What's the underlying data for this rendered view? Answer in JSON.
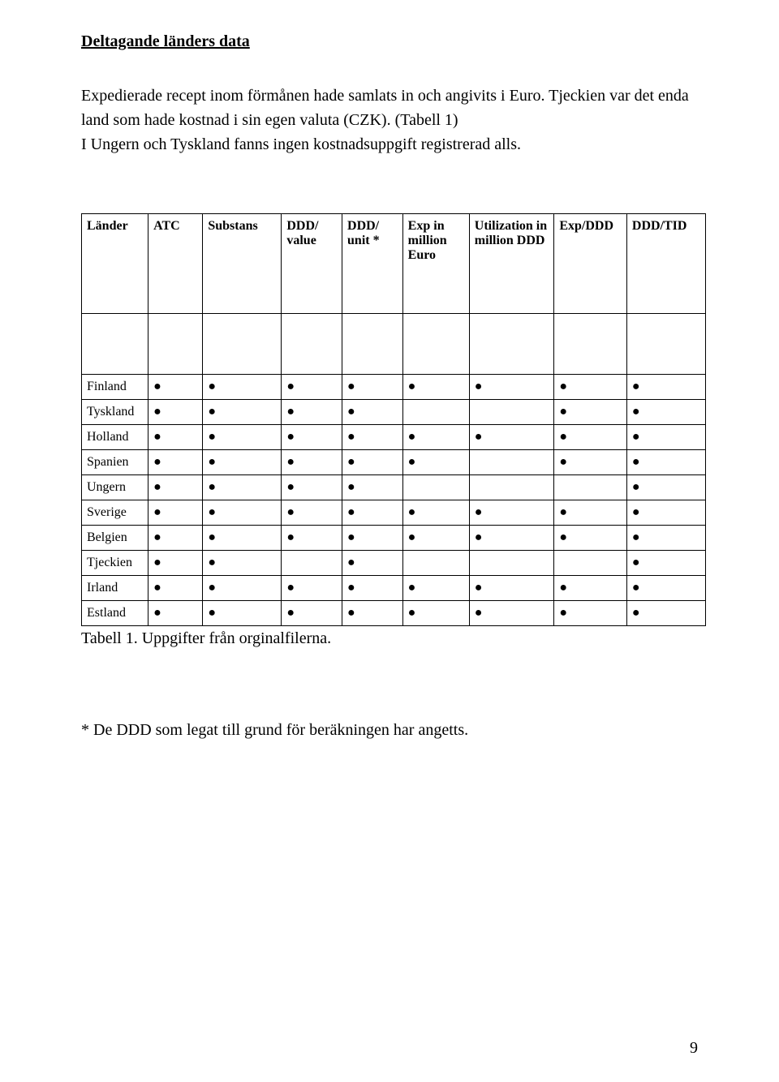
{
  "heading": "Deltagande länders data",
  "intro_paragraph": "Expedierade recept inom förmånen hade samlats in och angivits i Euro. Tjeckien var det enda land som hade kostnad i sin egen valuta (CZK). (Tabell 1)\nI Ungern och Tyskland fanns ingen kostnadsuppgift registrerad alls.",
  "table": {
    "columns": [
      "Länder",
      "ATC",
      "Substans",
      "DDD/ value",
      "DDD/ unit *",
      "Exp in million Euro",
      "Utilization in million DDD",
      "Exp/DDD",
      "DDD/TID"
    ],
    "rows": [
      {
        "label": "Finland",
        "dots": [
          true,
          true,
          true,
          true,
          true,
          true,
          true,
          true
        ]
      },
      {
        "label": "Tyskland",
        "dots": [
          true,
          true,
          true,
          true,
          false,
          false,
          true,
          true
        ]
      },
      {
        "label": "Holland",
        "dots": [
          true,
          true,
          true,
          true,
          true,
          true,
          true,
          true
        ]
      },
      {
        "label": "Spanien",
        "dots": [
          true,
          true,
          true,
          true,
          true,
          false,
          true,
          true
        ]
      },
      {
        "label": "Ungern",
        "dots": [
          true,
          true,
          true,
          true,
          false,
          false,
          false,
          true
        ]
      },
      {
        "label": "Sverige",
        "dots": [
          true,
          true,
          true,
          true,
          true,
          true,
          true,
          true
        ]
      },
      {
        "label": "Belgien",
        "dots": [
          true,
          true,
          true,
          true,
          true,
          true,
          true,
          true
        ]
      },
      {
        "label": "Tjeckien",
        "dots": [
          true,
          true,
          false,
          true,
          false,
          false,
          false,
          true
        ]
      },
      {
        "label": "Irland",
        "dots": [
          true,
          true,
          true,
          true,
          true,
          true,
          true,
          true
        ]
      },
      {
        "label": "Estland",
        "dots": [
          true,
          true,
          true,
          true,
          true,
          true,
          true,
          true
        ]
      }
    ],
    "dot_glyph": "●",
    "header_fontsize": 16,
    "body_fontsize": 16,
    "border_color": "#000000"
  },
  "caption": "Tabell 1. Uppgifter från orginalfilerna.",
  "footnote": "* De DDD som legat till grund för beräkningen har angetts.",
  "page_number": "9",
  "styles": {
    "background_color": "#ffffff",
    "text_color": "#000000",
    "heading_fontsize": 20,
    "body_fontsize": 20,
    "font_family": "Times New Roman"
  }
}
